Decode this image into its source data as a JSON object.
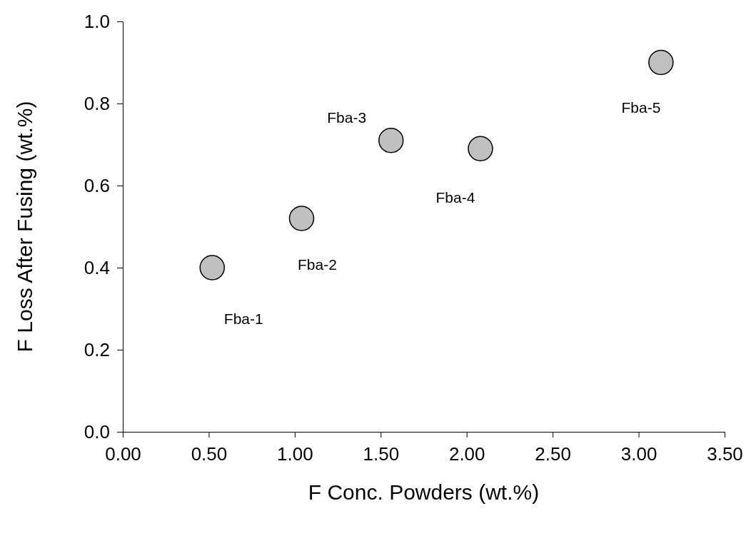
{
  "chart_data": {
    "type": "scatter",
    "xlabel": "F Conc. Powders (wt.%)",
    "ylabel": "F Loss After Fusing (wt.%)",
    "x": [
      0.52,
      1.04,
      1.56,
      2.08,
      3.13
    ],
    "series": [
      {
        "color": "#c0c0c0",
        "values": [
          0.4,
          0.52,
          0.71,
          0.69,
          0.9
        ]
      }
    ],
    "xlim": [
      0,
      3.5
    ],
    "xticks": [
      {
        "value": 0,
        "label": "0.00"
      },
      {
        "value": 0.5,
        "label": "0.50"
      },
      {
        "value": 1,
        "label": "1.00"
      },
      {
        "value": 1.5,
        "label": "1.50"
      },
      {
        "value": 2,
        "label": "2.00"
      },
      {
        "value": 2.5,
        "label": "2.50"
      },
      {
        "value": 3,
        "label": "3.00"
      },
      {
        "value": 3.5,
        "label": "3.50"
      }
    ],
    "ylim": [
      0,
      1
    ],
    "yticks": [
      {
        "value": 0,
        "label": "0.0"
      },
      {
        "value": 0.2,
        "label": "0.2"
      },
      {
        "value": 0.4,
        "label": "0.4"
      },
      {
        "value": 0.6,
        "label": "0.6"
      },
      {
        "value": 0.8,
        "label": "0.8"
      },
      {
        "value": 1,
        "label": "1.0"
      }
    ],
    "marker": "circle",
    "grid": false,
    "annotations": [
      {
        "text": "Fba-1",
        "x": 0.52,
        "y": 0.4
      },
      {
        "text": "Fba-2",
        "x": 1.04,
        "y": 0.52
      },
      {
        "text": "Fba-3",
        "x": 1.56,
        "y": 0.71
      },
      {
        "text": "Fba-4",
        "x": 2.08,
        "y": 0.69
      },
      {
        "text": "Fba-5",
        "x": 3.13,
        "y": 0.9
      }
    ]
  }
}
